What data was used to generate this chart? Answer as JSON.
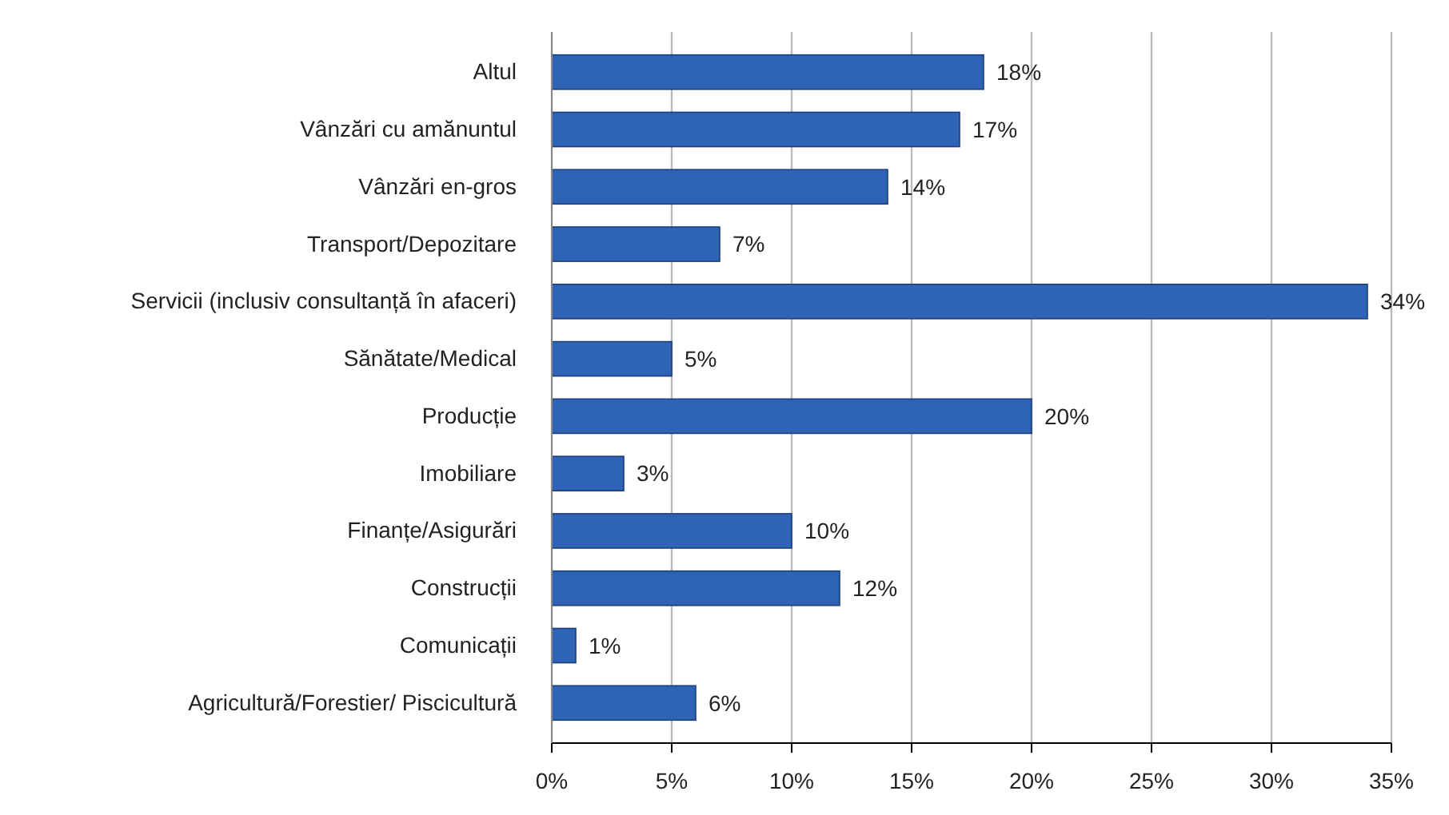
{
  "chart_data": {
    "type": "bar",
    "orientation": "horizontal",
    "categories": [
      "Altul",
      "Vânzări cu amănuntul",
      "Vânzări en-gros",
      "Transport/Depozitare",
      "Servicii (inclusiv consultanță în afaceri)",
      "Sănătate/Medical",
      "Producție",
      "Imobiliare",
      "Finanțe/Asigurări",
      "Construcții",
      "Comunicații",
      "Agricultură/Forestier/ Piscicultură"
    ],
    "values": [
      18,
      17,
      14,
      7,
      34,
      5,
      20,
      3,
      10,
      12,
      1,
      6
    ],
    "value_labels": [
      "18%",
      "17%",
      "14%",
      "7%",
      "34%",
      "5%",
      "20%",
      "3%",
      "10%",
      "12%",
      "1%",
      "6%"
    ],
    "color": "#2e63b5",
    "xlim": [
      0,
      35
    ],
    "xticks": [
      {
        "value": 0,
        "label": "0%"
      },
      {
        "value": 5,
        "label": "5%"
      },
      {
        "value": 10,
        "label": "10%"
      },
      {
        "value": 15,
        "label": "15%"
      },
      {
        "value": 20,
        "label": "20%"
      },
      {
        "value": 25,
        "label": "25%"
      },
      {
        "value": 30,
        "label": "30%"
      },
      {
        "value": 35,
        "label": "35%"
      }
    ],
    "grid": "x"
  }
}
